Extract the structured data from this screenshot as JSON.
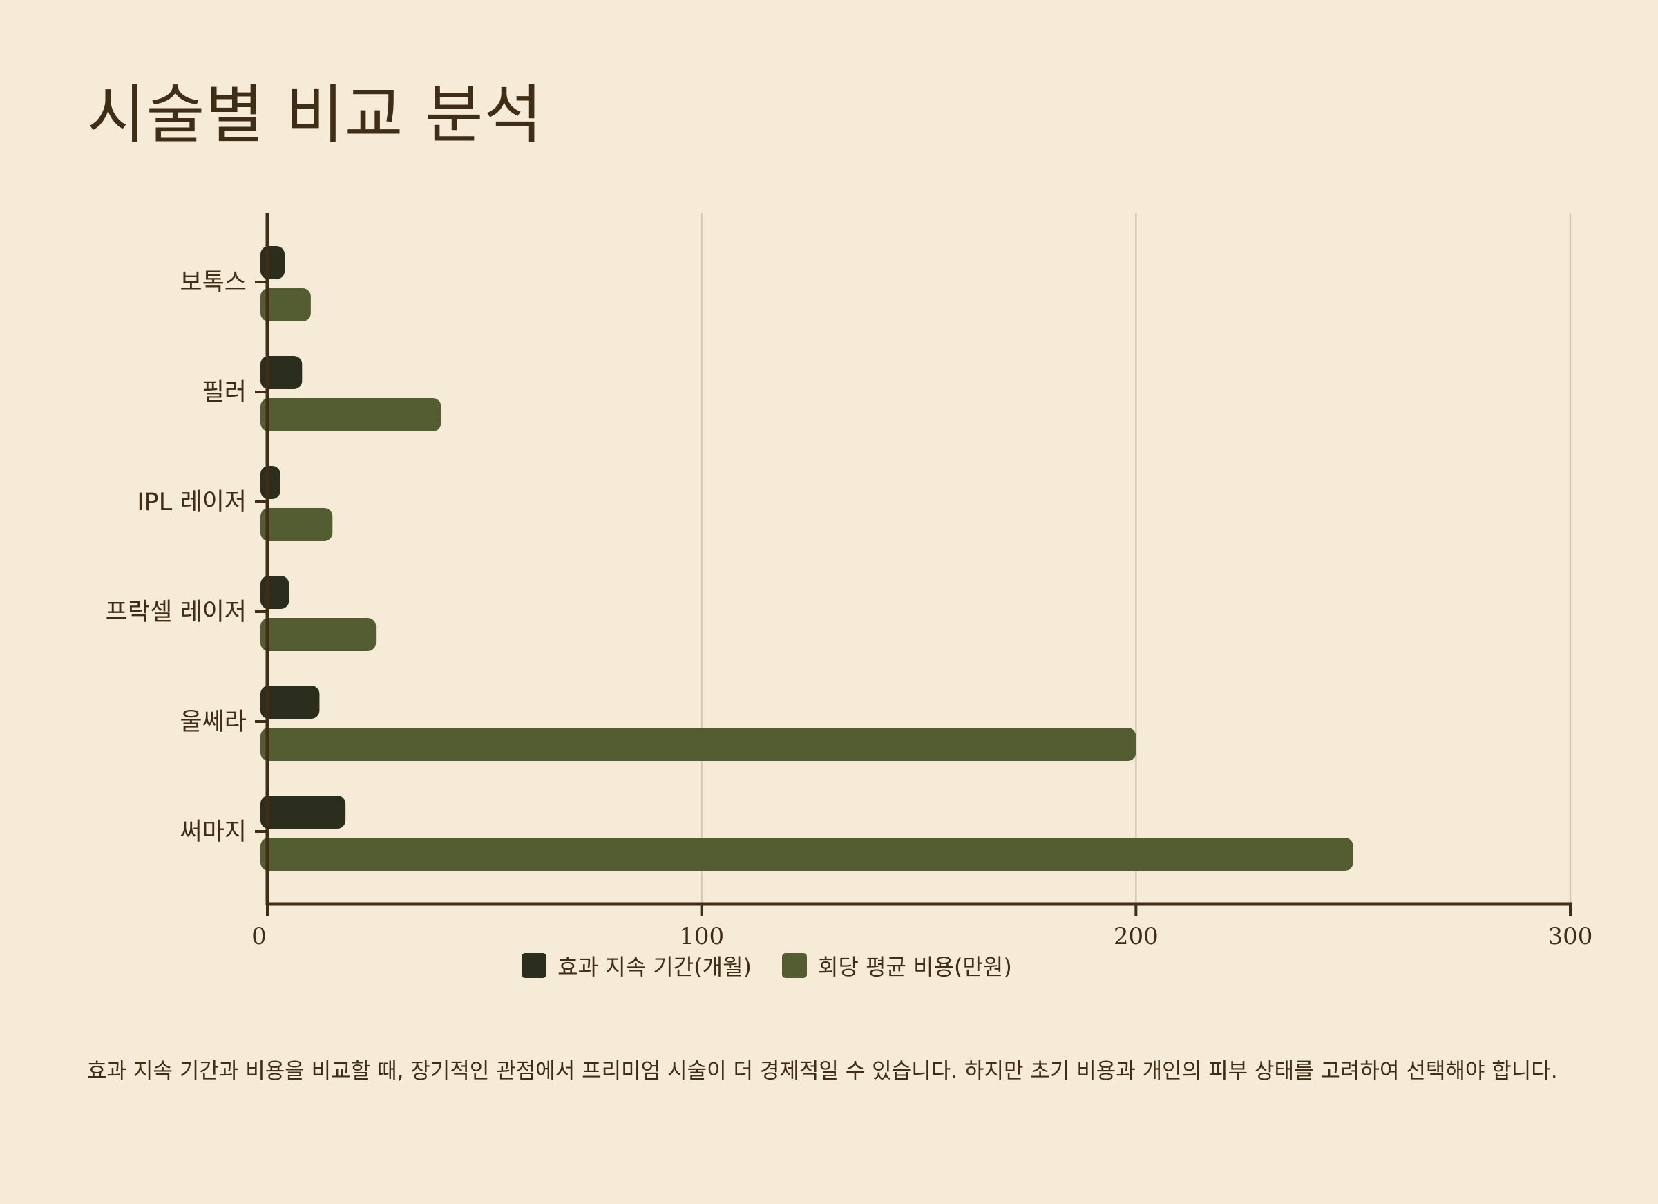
{
  "page": {
    "title": "시술별 비교 분석",
    "note": "효과 지속 기간과 비용을 비교할 때, 장기적인 관점에서 프리미엄 시술이 더 경제적일 수 있습니다. 하지만 초기 비용과 개인의 피부 상태를 고려하여 선택해야 합니다."
  },
  "colors": {
    "background": "#f6ebd7",
    "text": "#3f2e15",
    "series_duration": "#2b2e1c",
    "series_cost": "#545d32",
    "grid": "#d3c9b6",
    "axis": "#3f2e15"
  },
  "chart_data": {
    "type": "bar",
    "orientation": "horizontal",
    "title": "",
    "categories": [
      "보톡스",
      "필러",
      "IPL 레이저",
      "프락셀 레이저",
      "울쎄라",
      "써마지"
    ],
    "series": [
      {
        "name": "효과 지속 기간(개월)",
        "values": [
          4,
          8,
          3,
          5,
          12,
          18
        ]
      },
      {
        "name": "회당 평균 비용(만원)",
        "values": [
          10,
          40,
          15,
          25,
          200,
          250
        ]
      }
    ],
    "xlim": [
      0,
      300
    ],
    "xticks": [
      "0",
      "100",
      "200",
      "300"
    ],
    "grid": "vertical",
    "legend": "bottom-center"
  }
}
